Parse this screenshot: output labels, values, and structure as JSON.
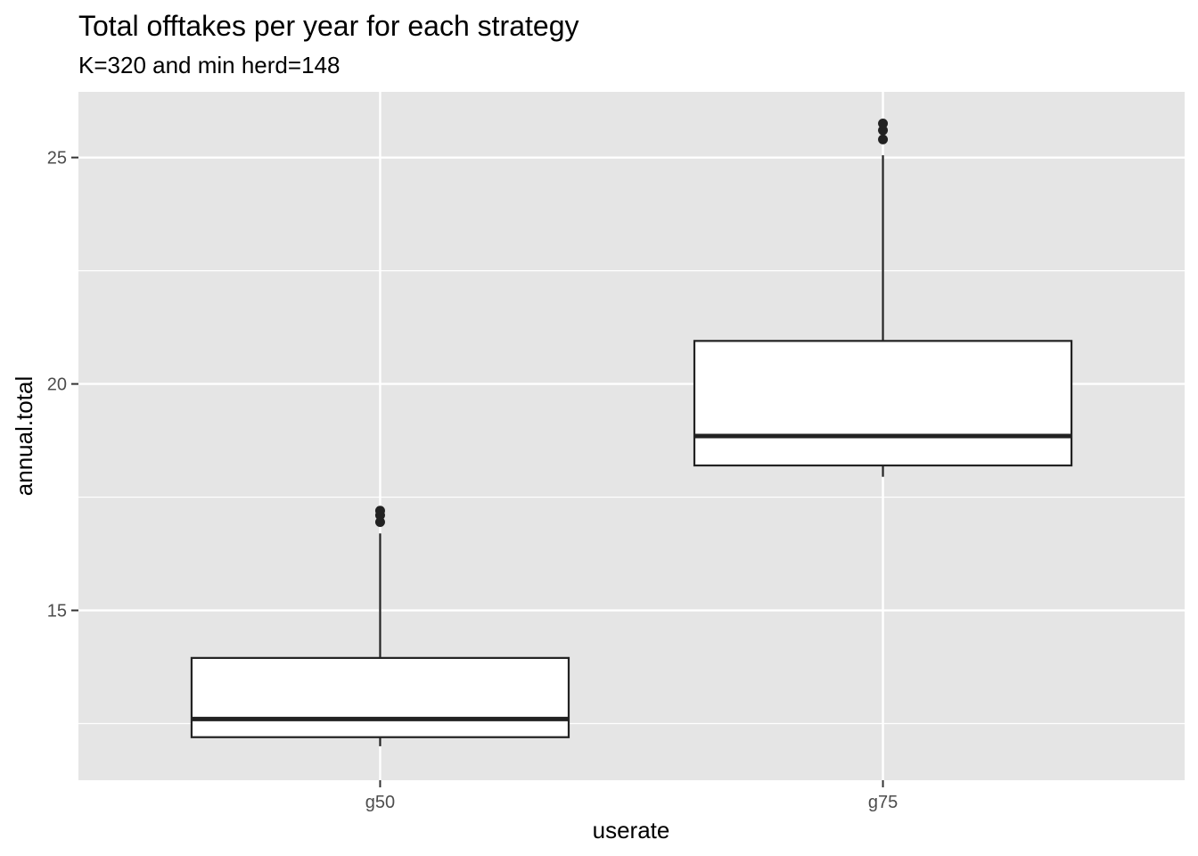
{
  "chart_data": {
    "type": "boxplot",
    "title": "Total offtakes per year for each strategy",
    "subtitle": "K=320 and min herd=148",
    "xlabel": "userate",
    "ylabel": "annual.total",
    "categories": [
      "g50",
      "g75"
    ],
    "boxes": [
      {
        "category": "g50",
        "whisker_low": 12.0,
        "q1": 12.2,
        "median": 12.6,
        "q3": 13.95,
        "whisker_high": 16.7,
        "outliers": [
          16.95,
          17.1,
          17.2
        ]
      },
      {
        "category": "g75",
        "whisker_low": 17.95,
        "q1": 18.2,
        "median": 18.85,
        "q3": 20.95,
        "whisker_high": 25.05,
        "outliers": [
          25.4,
          25.6,
          25.75
        ]
      }
    ],
    "ylim": [
      11.25,
      26.45
    ],
    "yticks": [
      15,
      20,
      25
    ],
    "ytick_labels": [
      "15",
      "20",
      "25"
    ],
    "grid": true,
    "colors": {
      "panel": "#e5e5e5",
      "grid": "#ffffff",
      "box_fill": "#ffffff",
      "box_line": "#222222"
    }
  }
}
